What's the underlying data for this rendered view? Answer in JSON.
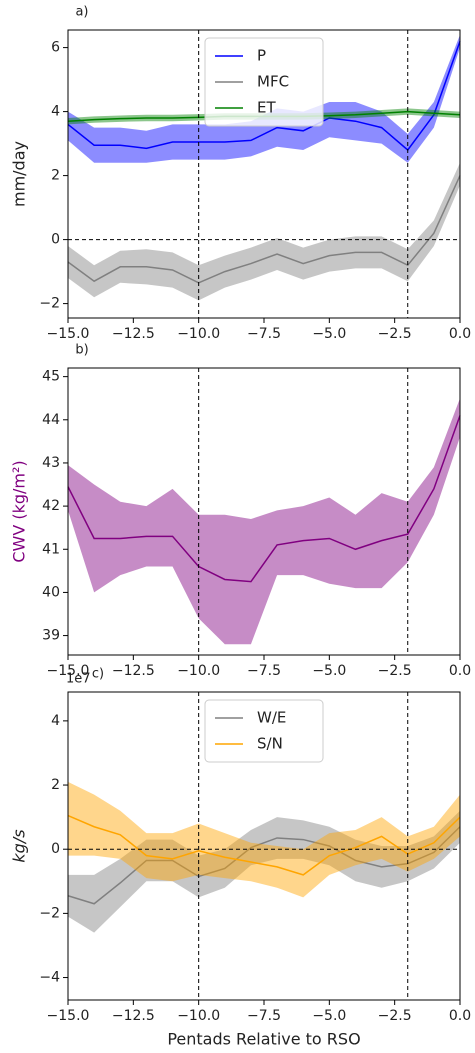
{
  "chart_data": [
    {
      "type": "line",
      "panel_label": "a)",
      "ylabel": "mm/day",
      "legend": "upper center",
      "x": [
        -15,
        -14,
        -13,
        -12,
        -11,
        -10,
        -9,
        -8,
        -7,
        -6,
        -5,
        -4,
        -3,
        -2,
        -1,
        0
      ],
      "xlim": [
        -15,
        0
      ],
      "ylim": [
        -2.45,
        6.55
      ],
      "xticks": [
        {
          "value": -15,
          "label": "−15.0"
        },
        {
          "value": -12.5,
          "label": "−12.5"
        },
        {
          "value": -10,
          "label": "−10.0"
        },
        {
          "value": -7.5,
          "label": "−7.5"
        },
        {
          "value": -5,
          "label": "−5.0"
        },
        {
          "value": -2.5,
          "label": "−2.5"
        },
        {
          "value": 0,
          "label": "0.0"
        }
      ],
      "yticks": [
        {
          "value": -2,
          "label": "−2"
        },
        0,
        2,
        4,
        6
      ],
      "vlines": [
        -10,
        -2
      ],
      "hlines": [
        0
      ],
      "series": [
        {
          "name": "P",
          "color": "#0000ff",
          "values": [
            3.6,
            2.95,
            2.95,
            2.85,
            3.05,
            3.05,
            3.05,
            3.1,
            3.5,
            3.4,
            3.8,
            3.7,
            3.5,
            2.8,
            3.9,
            6.2
          ],
          "lower": [
            3.1,
            2.4,
            2.4,
            2.4,
            2.5,
            2.5,
            2.5,
            2.6,
            2.9,
            2.8,
            3.2,
            3.1,
            3.0,
            2.4,
            3.5,
            6.0
          ],
          "upper": [
            4.0,
            3.5,
            3.5,
            3.4,
            3.6,
            3.6,
            3.6,
            3.7,
            4.1,
            4.0,
            4.3,
            4.3,
            4.0,
            3.3,
            4.3,
            6.4
          ]
        },
        {
          "name": "MFC",
          "color": "#808080",
          "values": [
            -0.7,
            -1.3,
            -0.85,
            -0.85,
            -0.95,
            -1.35,
            -1.0,
            -0.75,
            -0.45,
            -0.75,
            -0.5,
            -0.4,
            -0.4,
            -0.8,
            0.2,
            2.0
          ],
          "lower": [
            -1.2,
            -1.8,
            -1.35,
            -1.4,
            -1.5,
            -1.9,
            -1.5,
            -1.25,
            -0.95,
            -1.25,
            -1.0,
            -0.9,
            -0.9,
            -1.3,
            -0.2,
            1.7
          ],
          "upper": [
            -0.2,
            -0.8,
            -0.35,
            -0.3,
            -0.4,
            -0.8,
            -0.5,
            -0.25,
            0.05,
            -0.25,
            0.0,
            0.1,
            0.1,
            -0.3,
            0.6,
            2.4
          ]
        },
        {
          "name": "ET",
          "color": "#008000",
          "values": [
            3.7,
            3.75,
            3.78,
            3.8,
            3.8,
            3.82,
            3.85,
            3.85,
            3.85,
            3.85,
            3.87,
            3.9,
            3.95,
            4.0,
            3.95,
            3.9
          ],
          "lower": [
            3.6,
            3.65,
            3.68,
            3.7,
            3.7,
            3.72,
            3.75,
            3.75,
            3.75,
            3.75,
            3.77,
            3.8,
            3.85,
            3.9,
            3.85,
            3.8
          ],
          "upper": [
            3.8,
            3.85,
            3.88,
            3.9,
            3.9,
            3.92,
            3.95,
            3.95,
            3.95,
            3.95,
            3.97,
            4.0,
            4.05,
            4.1,
            4.05,
            4.0
          ]
        }
      ]
    },
    {
      "type": "line",
      "panel_label": "b)",
      "ylabel": "CWV (kg/m²)",
      "ylabel_color": "#800080",
      "x": [
        -15,
        -14,
        -13,
        -12,
        -11,
        -10,
        -9,
        -8,
        -7,
        -6,
        -5,
        -4,
        -3,
        -2,
        -1,
        0
      ],
      "xlim": [
        -15,
        0
      ],
      "ylim": [
        38.55,
        45.2
      ],
      "xticks": [
        {
          "value": -15,
          "label": "−15.0"
        },
        {
          "value": -12.5,
          "label": "−12.5"
        },
        {
          "value": -10,
          "label": "−10.0"
        },
        {
          "value": -7.5,
          "label": "−7.5"
        },
        {
          "value": -5,
          "label": "−5.0"
        },
        {
          "value": -2.5,
          "label": "−2.5"
        },
        {
          "value": 0,
          "label": "0.0"
        }
      ],
      "yticks": [
        39,
        40,
        41,
        42,
        43,
        44,
        45
      ],
      "vlines": [
        -10,
        -2
      ],
      "color": "#800080",
      "values": [
        42.45,
        41.25,
        41.25,
        41.3,
        41.3,
        40.6,
        40.3,
        40.25,
        41.1,
        41.2,
        41.25,
        41.0,
        41.2,
        41.35,
        42.4,
        44.1
      ],
      "lower": [
        41.9,
        40.0,
        40.4,
        40.6,
        40.6,
        39.4,
        38.8,
        38.8,
        40.4,
        40.4,
        40.2,
        40.1,
        40.1,
        40.7,
        41.8,
        43.6
      ],
      "upper": [
        42.95,
        42.5,
        42.1,
        42.0,
        42.4,
        41.8,
        41.8,
        41.7,
        41.9,
        42.0,
        42.2,
        41.8,
        42.3,
        42.1,
        42.9,
        44.5
      ]
    },
    {
      "type": "line",
      "panel_label": "c)",
      "offset_text": "1e7",
      "ylabel": "kg/s",
      "xlabel": "Pentads Relative to RSO",
      "legend": "upper center",
      "x": [
        -15,
        -14,
        -13,
        -12,
        -11,
        -10,
        -9,
        -8,
        -7,
        -6,
        -5,
        -4,
        -3,
        -2,
        -1,
        0
      ],
      "xlim": [
        -15,
        0
      ],
      "ylim": [
        -4.7,
        4.9
      ],
      "xticks": [
        {
          "value": -15,
          "label": "−15.0"
        },
        {
          "value": -12.5,
          "label": "−12.5"
        },
        {
          "value": -10,
          "label": "−10.0"
        },
        {
          "value": -7.5,
          "label": "−7.5"
        },
        {
          "value": -5,
          "label": "−5.0"
        },
        {
          "value": -2.5,
          "label": "−2.5"
        },
        {
          "value": 0,
          "label": "0.0"
        }
      ],
      "yticks": [
        {
          "value": -4,
          "label": "−4"
        },
        {
          "value": -2,
          "label": "−2"
        },
        0,
        2,
        4
      ],
      "vlines": [
        -10,
        -2
      ],
      "hlines": [
        0
      ],
      "series": [
        {
          "name": "W/E",
          "color": "#808080",
          "values": [
            -1.45,
            -1.7,
            -1.05,
            -0.35,
            -0.35,
            -0.85,
            -0.6,
            0.05,
            0.35,
            0.3,
            0.1,
            -0.35,
            -0.55,
            -0.45,
            -0.1,
            0.7
          ],
          "lower": [
            -2.1,
            -2.6,
            -1.8,
            -1.0,
            -1.0,
            -1.5,
            -1.2,
            -0.5,
            -0.3,
            -0.3,
            -0.5,
            -1.0,
            -1.2,
            -1.0,
            -0.6,
            0.2
          ],
          "upper": [
            -0.8,
            -0.8,
            -0.3,
            0.3,
            0.3,
            -0.2,
            0.0,
            0.6,
            1.0,
            0.9,
            0.7,
            0.3,
            0.1,
            0.1,
            0.4,
            1.2
          ]
        },
        {
          "name": "S/N",
          "color": "#ffa500",
          "values": [
            1.05,
            0.7,
            0.45,
            -0.2,
            -0.3,
            -0.05,
            -0.25,
            -0.4,
            -0.55,
            -0.8,
            -0.2,
            0.05,
            0.4,
            -0.15,
            0.2,
            1.0
          ],
          "lower": [
            -0.2,
            -0.2,
            -0.3,
            -0.9,
            -1.0,
            -0.8,
            -0.9,
            -1.0,
            -1.2,
            -1.5,
            -0.8,
            -0.5,
            -0.3,
            -0.7,
            -0.3,
            0.4
          ],
          "upper": [
            2.1,
            1.7,
            1.2,
            0.5,
            0.5,
            0.8,
            0.5,
            0.2,
            0.1,
            0.0,
            0.5,
            0.6,
            1.0,
            0.4,
            0.7,
            1.7
          ]
        }
      ]
    }
  ]
}
